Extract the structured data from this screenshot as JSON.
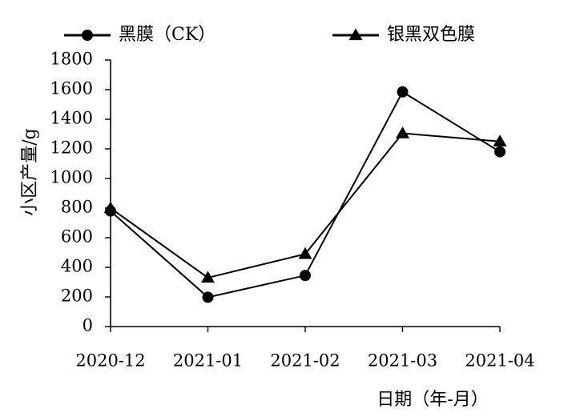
{
  "chart_data": {
    "type": "line",
    "categories": [
      "2020-12",
      "2021-01",
      "2021-02",
      "2021-03",
      "2021-04"
    ],
    "series": [
      {
        "name": "黑膜（CK）",
        "marker": "circle",
        "values": [
          780,
          198,
          345,
          1585,
          1180
        ]
      },
      {
        "name": "银黑双色膜",
        "marker": "triangle",
        "values": [
          800,
          330,
          490,
          1305,
          1250
        ]
      }
    ],
    "title": "",
    "xlabel": "日期（年-月）",
    "ylabel": "小区产量/g",
    "ylim": [
      0,
      1800
    ],
    "yticks": [
      0,
      200,
      400,
      600,
      800,
      1000,
      1200,
      1400,
      1600,
      1800
    ],
    "grid": false,
    "legend_position": "top",
    "colors": {
      "line": "#000000",
      "background": "#ffffff"
    }
  }
}
